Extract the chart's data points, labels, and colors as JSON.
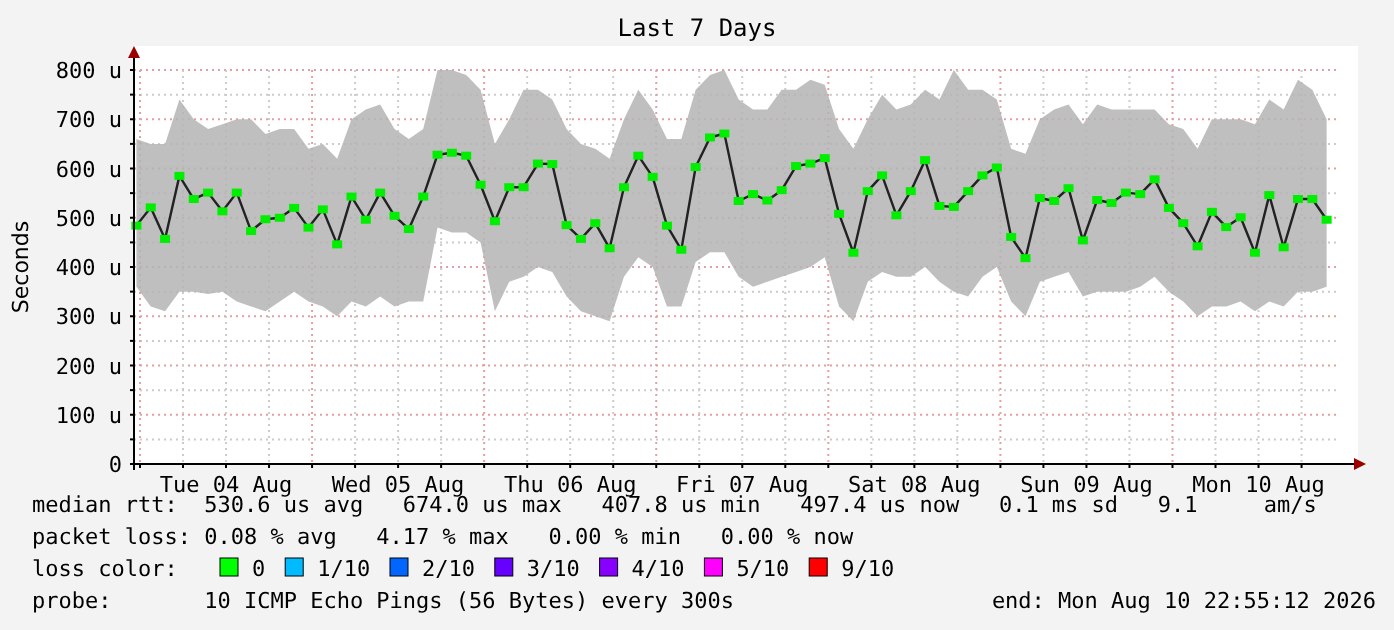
{
  "chart_data": {
    "type": "line",
    "title": "Last 7 Days",
    "ylabel": "Seconds",
    "x": [
      "2026-08-03T23:30",
      "2026-08-04T01:30",
      "2026-08-04T03:30",
      "2026-08-04T05:30",
      "2026-08-04T07:30",
      "2026-08-04T09:30",
      "2026-08-04T11:30",
      "2026-08-04T13:30",
      "2026-08-04T15:30",
      "2026-08-04T17:30",
      "2026-08-04T19:30",
      "2026-08-04T21:30",
      "2026-08-04T23:30",
      "2026-08-05T01:30",
      "2026-08-05T03:30",
      "2026-08-05T05:30",
      "2026-08-05T07:30",
      "2026-08-05T09:30",
      "2026-08-05T11:30",
      "2026-08-05T13:30",
      "2026-08-05T15:30",
      "2026-08-05T17:30",
      "2026-08-05T19:30",
      "2026-08-05T21:30",
      "2026-08-05T23:30",
      "2026-08-06T01:30",
      "2026-08-06T03:30",
      "2026-08-06T05:30",
      "2026-08-06T07:30",
      "2026-08-06T09:30",
      "2026-08-06T11:30",
      "2026-08-06T13:30",
      "2026-08-06T15:30",
      "2026-08-06T17:30",
      "2026-08-06T19:30",
      "2026-08-06T21:30",
      "2026-08-06T23:30",
      "2026-08-07T01:30",
      "2026-08-07T03:30",
      "2026-08-07T05:30",
      "2026-08-07T07:30",
      "2026-08-07T09:30",
      "2026-08-07T11:30",
      "2026-08-07T13:30",
      "2026-08-07T15:30",
      "2026-08-07T17:30",
      "2026-08-07T19:30",
      "2026-08-07T21:30",
      "2026-08-07T23:30",
      "2026-08-08T01:30",
      "2026-08-08T03:30",
      "2026-08-08T05:30",
      "2026-08-08T07:30",
      "2026-08-08T09:30",
      "2026-08-08T11:30",
      "2026-08-08T13:30",
      "2026-08-08T15:30",
      "2026-08-08T17:30",
      "2026-08-08T19:30",
      "2026-08-08T21:30",
      "2026-08-08T23:30",
      "2026-08-09T01:30",
      "2026-08-09T03:30",
      "2026-08-09T05:30",
      "2026-08-09T07:30",
      "2026-08-09T09:30",
      "2026-08-09T11:30",
      "2026-08-09T13:30",
      "2026-08-09T15:30",
      "2026-08-09T17:30",
      "2026-08-09T19:30",
      "2026-08-09T21:30",
      "2026-08-09T23:30",
      "2026-08-10T01:30",
      "2026-08-10T03:30",
      "2026-08-10T05:30",
      "2026-08-10T07:30",
      "2026-08-10T09:30",
      "2026-08-10T11:30",
      "2026-08-10T13:30",
      "2026-08-10T15:30",
      "2026-08-10T17:30",
      "2026-08-10T19:30",
      "2026-08-10T21:30"
    ],
    "series": [
      {
        "color": "#00ee00",
        "values": [
          484,
          521,
          457,
          585,
          538,
          551,
          513,
          551,
          473,
          497,
          500,
          520,
          480,
          517,
          446,
          543,
          496,
          551,
          504,
          477,
          543,
          628,
          632,
          626,
          567,
          493,
          562,
          562,
          610,
          609,
          485,
          457,
          489,
          438,
          562,
          626,
          583,
          484,
          435,
          603,
          663,
          671,
          534,
          548,
          535,
          556,
          605,
          610,
          621,
          508,
          429,
          554,
          586,
          505,
          554,
          617,
          524,
          522,
          554,
          586,
          602,
          461,
          418,
          540,
          534,
          560,
          454,
          536,
          530,
          551,
          548,
          578,
          520,
          489,
          442,
          512,
          481,
          501,
          429,
          546,
          440,
          538,
          538,
          496
        ],
        "lower": [
          360,
          320,
          310,
          350,
          350,
          345,
          350,
          330,
          320,
          310,
          330,
          350,
          330,
          320,
          300,
          330,
          320,
          340,
          320,
          330,
          330,
          480,
          470,
          470,
          450,
          310,
          370,
          380,
          400,
          390,
          340,
          310,
          300,
          290,
          380,
          420,
          400,
          320,
          320,
          410,
          430,
          430,
          380,
          360,
          370,
          380,
          390,
          400,
          420,
          320,
          290,
          370,
          390,
          380,
          380,
          400,
          370,
          350,
          340,
          380,
          400,
          330,
          300,
          370,
          380,
          390,
          340,
          350,
          350,
          350,
          360,
          380,
          350,
          330,
          300,
          320,
          320,
          330,
          310,
          330,
          320,
          350,
          350,
          360
        ],
        "upper": [
          660,
          650,
          650,
          740,
          700,
          680,
          690,
          700,
          700,
          670,
          680,
          680,
          640,
          650,
          620,
          700,
          720,
          730,
          680,
          660,
          680,
          800,
          800,
          790,
          760,
          650,
          700,
          760,
          760,
          740,
          680,
          650,
          640,
          620,
          700,
          760,
          720,
          660,
          660,
          760,
          790,
          800,
          740,
          720,
          720,
          760,
          760,
          780,
          770,
          680,
          640,
          700,
          750,
          720,
          730,
          760,
          740,
          800,
          760,
          760,
          740,
          640,
          630,
          700,
          720,
          730,
          690,
          730,
          720,
          720,
          720,
          720,
          690,
          680,
          640,
          700,
          700,
          700,
          690,
          740,
          720,
          780,
          760,
          700
        ]
      }
    ],
    "xlim": [
      "2026-08-03T23:10",
      "2026-08-10T23:05"
    ],
    "xticks": [
      {
        "value": "2026-08-04T00:00",
        "label": null
      },
      {
        "value": "2026-08-04T06:00",
        "label": null
      },
      {
        "value": "2026-08-04T12:00",
        "label": "Tue 04 Aug"
      },
      {
        "value": "2026-08-04T18:00",
        "label": null
      },
      {
        "value": "2026-08-05T00:00",
        "label": null
      },
      {
        "value": "2026-08-05T06:00",
        "label": null
      },
      {
        "value": "2026-08-05T12:00",
        "label": "Wed 05 Aug"
      },
      {
        "value": "2026-08-05T18:00",
        "label": null
      },
      {
        "value": "2026-08-06T00:00",
        "label": null
      },
      {
        "value": "2026-08-06T06:00",
        "label": null
      },
      {
        "value": "2026-08-06T12:00",
        "label": "Thu 06 Aug"
      },
      {
        "value": "2026-08-06T18:00",
        "label": null
      },
      {
        "value": "2026-08-07T00:00",
        "label": null
      },
      {
        "value": "2026-08-07T06:00",
        "label": null
      },
      {
        "value": "2026-08-07T12:00",
        "label": "Fri 07 Aug"
      },
      {
        "value": "2026-08-07T18:00",
        "label": null
      },
      {
        "value": "2026-08-08T00:00",
        "label": null
      },
      {
        "value": "2026-08-08T06:00",
        "label": null
      },
      {
        "value": "2026-08-08T12:00",
        "label": "Sat 08 Aug"
      },
      {
        "value": "2026-08-08T18:00",
        "label": null
      },
      {
        "value": "2026-08-09T00:00",
        "label": null
      },
      {
        "value": "2026-08-09T06:00",
        "label": null
      },
      {
        "value": "2026-08-09T12:00",
        "label": "Sun 09 Aug"
      },
      {
        "value": "2026-08-09T18:00",
        "label": null
      },
      {
        "value": "2026-08-10T00:00",
        "label": null
      },
      {
        "value": "2026-08-10T06:00",
        "label": null
      },
      {
        "value": "2026-08-10T12:00",
        "label": "Mon 10 Aug"
      },
      {
        "value": "2026-08-10T18:00",
        "label": null
      }
    ],
    "ylim": [
      0,
      800
    ],
    "yticks": [
      0,
      {
        "value": 50,
        "label": null
      },
      {
        "value": 100,
        "label": "100 u"
      },
      {
        "value": 150,
        "label": null
      },
      {
        "value": 200,
        "label": "200 u"
      },
      {
        "value": 250,
        "label": null
      },
      {
        "value": 300,
        "label": "300 u"
      },
      {
        "value": 350,
        "label": null
      },
      {
        "value": 400,
        "label": "400 u"
      },
      {
        "value": 450,
        "label": null
      },
      {
        "value": 500,
        "label": "500 u"
      },
      {
        "value": 550,
        "label": null
      },
      {
        "value": 600,
        "label": "600 u"
      },
      {
        "value": 650,
        "label": null
      },
      {
        "value": 700,
        "label": "700 u"
      },
      {
        "value": 750,
        "label": null
      },
      {
        "value": 800,
        "label": "800 u"
      }
    ],
    "grid": true,
    "marker": "square",
    "annotations": [
      "median rtt:  530.6 us avg   674.0 us max   407.8 us min   497.4 us now   0.1 ms sd   9.1     am/s",
      "packet loss: 0.08 % avg   4.17 % max   0.00 % min   0.00 % now",
      "loss color:",
      "0",
      "1/10",
      "2/10",
      "3/10",
      "4/10",
      "5/10",
      "9/10",
      "probe:       10 ICMP Echo Pings (56 Bytes) every 300s",
      "end: Mon Aug 10 22:55:12 2026"
    ]
  }
}
